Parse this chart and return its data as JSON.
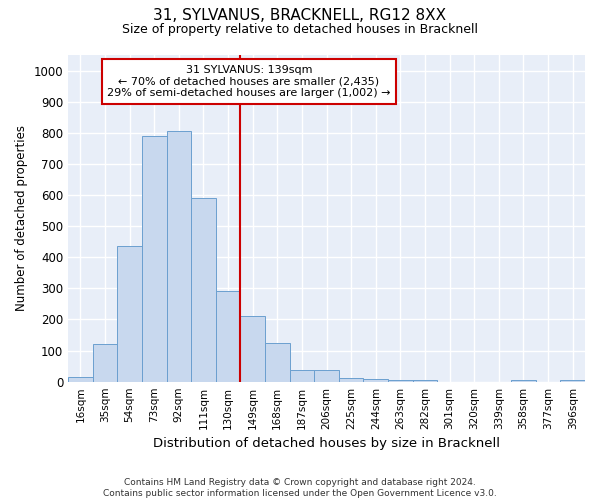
{
  "title1": "31, SYLVANUS, BRACKNELL, RG12 8XX",
  "title2": "Size of property relative to detached houses in Bracknell",
  "xlabel": "Distribution of detached houses by size in Bracknell",
  "ylabel": "Number of detached properties",
  "footer": "Contains HM Land Registry data © Crown copyright and database right 2024.\nContains public sector information licensed under the Open Government Licence v3.0.",
  "categories": [
    "16sqm",
    "35sqm",
    "54sqm",
    "73sqm",
    "92sqm",
    "111sqm",
    "130sqm",
    "149sqm",
    "168sqm",
    "187sqm",
    "206sqm",
    "225sqm",
    "244sqm",
    "263sqm",
    "282sqm",
    "301sqm",
    "320sqm",
    "339sqm",
    "358sqm",
    "377sqm",
    "396sqm"
  ],
  "values": [
    15,
    120,
    435,
    790,
    805,
    590,
    290,
    210,
    125,
    38,
    38,
    12,
    8,
    5,
    5,
    0,
    0,
    0,
    5,
    0,
    5
  ],
  "bar_color": "#c8d8ee",
  "bar_edge_color": "#6b9fcf",
  "figure_bg": "#ffffff",
  "plot_bg": "#e8eef8",
  "grid_color": "#ffffff",
  "ylim": [
    0,
    1050
  ],
  "yticks": [
    0,
    100,
    200,
    300,
    400,
    500,
    600,
    700,
    800,
    900,
    1000
  ],
  "annotation_text": "31 SYLVANUS: 139sqm\n← 70% of detached houses are smaller (2,435)\n29% of semi-detached houses are larger (1,002) →",
  "annotation_box_color": "#ffffff",
  "annotation_border_color": "#cc0000",
  "vline_color": "#cc0000",
  "vline_x": 6.5
}
